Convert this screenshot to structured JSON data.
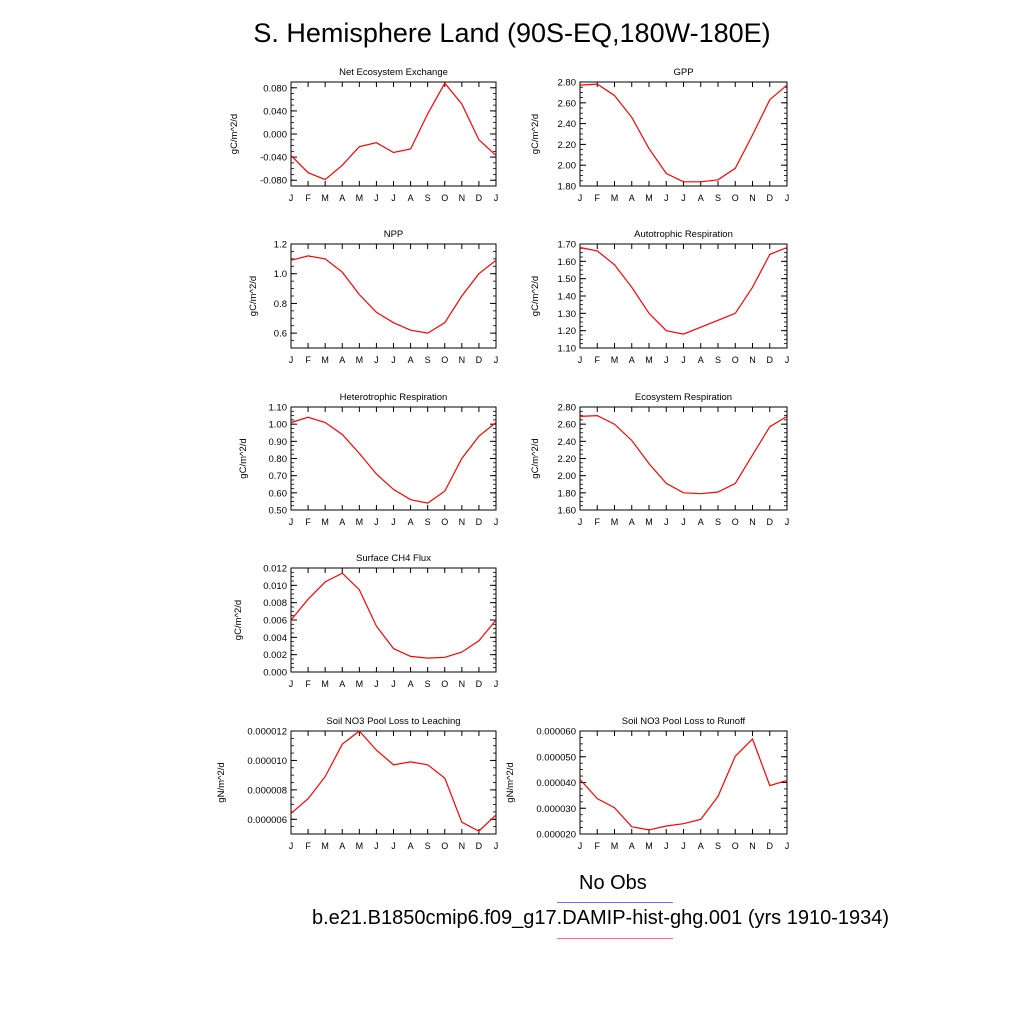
{
  "figure": {
    "title": "S. Hemisphere Land (90S-EQ,180W-180E)"
  },
  "colors": {
    "model": "#ff0000",
    "obs": "#6f6fff"
  },
  "legend": {
    "obs_label": "No Obs",
    "model_label": "b.e21.B1850cmip6.f09_g17.DAMIP-hist-ghg.001 (yrs 1910-1934)"
  },
  "chart_data": [
    {
      "type": "line",
      "title": "Net Ecosystem Exchange",
      "ylabel": "gC/m^2/d",
      "x": [
        "J",
        "F",
        "M",
        "A",
        "M",
        "J",
        "J",
        "A",
        "S",
        "O",
        "N",
        "D",
        "J"
      ],
      "ylim": [
        -0.09,
        0.09
      ],
      "yticks": [
        -0.08,
        -0.04,
        0.0,
        0.04,
        0.08
      ],
      "yticklabels": [
        "-0.080",
        "-0.040",
        "0.000",
        "0.040",
        "0.080"
      ],
      "series": [
        {
          "values": [
            -0.037,
            -0.067,
            -0.079,
            -0.054,
            -0.022,
            -0.015,
            -0.032,
            -0.026,
            0.035,
            0.088,
            0.052,
            -0.01,
            -0.037
          ]
        }
      ]
    },
    {
      "type": "line",
      "title": "GPP",
      "ylabel": "gC/m^2/d",
      "x": [
        "J",
        "F",
        "M",
        "A",
        "M",
        "J",
        "J",
        "A",
        "S",
        "O",
        "N",
        "D",
        "J"
      ],
      "ylim": [
        1.8,
        2.8
      ],
      "yticks": [
        1.8,
        2.0,
        2.2,
        2.4,
        2.6,
        2.8
      ],
      "yticklabels": [
        "1.80",
        "2.00",
        "2.20",
        "2.40",
        "2.60",
        "2.80"
      ],
      "series": [
        {
          "values": [
            2.77,
            2.78,
            2.67,
            2.46,
            2.16,
            1.92,
            1.84,
            1.84,
            1.86,
            1.97,
            2.29,
            2.63,
            2.77
          ]
        }
      ]
    },
    {
      "type": "line",
      "title": "NPP",
      "ylabel": "gC/m^2/d",
      "x": [
        "J",
        "F",
        "M",
        "A",
        "M",
        "J",
        "J",
        "A",
        "S",
        "O",
        "N",
        "D",
        "J"
      ],
      "ylim": [
        0.5,
        1.2
      ],
      "yticks": [
        0.6,
        0.8,
        1.0,
        1.2
      ],
      "yticklabels": [
        "0.6",
        "0.8",
        "1.0",
        "1.2"
      ],
      "series": [
        {
          "values": [
            1.09,
            1.12,
            1.1,
            1.01,
            0.86,
            0.74,
            0.67,
            0.62,
            0.6,
            0.67,
            0.85,
            1.0,
            1.09
          ]
        }
      ]
    },
    {
      "type": "line",
      "title": "Autotrophic Respiration",
      "ylabel": "gC/m^2/d",
      "x": [
        "J",
        "F",
        "M",
        "A",
        "M",
        "J",
        "J",
        "A",
        "S",
        "O",
        "N",
        "D",
        "J"
      ],
      "ylim": [
        1.1,
        1.7
      ],
      "yticks": [
        1.1,
        1.2,
        1.3,
        1.4,
        1.5,
        1.6,
        1.7
      ],
      "yticklabels": [
        "1.10",
        "1.20",
        "1.30",
        "1.40",
        "1.50",
        "1.60",
        "1.70"
      ],
      "series": [
        {
          "values": [
            1.68,
            1.66,
            1.58,
            1.45,
            1.3,
            1.2,
            1.18,
            1.22,
            1.26,
            1.3,
            1.45,
            1.64,
            1.68
          ]
        }
      ]
    },
    {
      "type": "line",
      "title": "Heterotrophic Respiration",
      "ylabel": "gC/m^2/d",
      "x": [
        "J",
        "F",
        "M",
        "A",
        "M",
        "J",
        "J",
        "A",
        "S",
        "O",
        "N",
        "D",
        "J"
      ],
      "ylim": [
        0.5,
        1.1
      ],
      "yticks": [
        0.5,
        0.6,
        0.7,
        0.8,
        0.9,
        1.0,
        1.1
      ],
      "yticklabels": [
        "0.50",
        "0.60",
        "0.70",
        "0.80",
        "0.90",
        "1.00",
        "1.10"
      ],
      "series": [
        {
          "values": [
            1.01,
            1.04,
            1.01,
            0.94,
            0.83,
            0.71,
            0.62,
            0.56,
            0.54,
            0.61,
            0.8,
            0.93,
            1.01
          ]
        }
      ]
    },
    {
      "type": "line",
      "title": "Ecosystem Respiration",
      "ylabel": "gC/m^2/d",
      "x": [
        "J",
        "F",
        "M",
        "A",
        "M",
        "J",
        "J",
        "A",
        "S",
        "O",
        "N",
        "D",
        "J"
      ],
      "ylim": [
        1.6,
        2.8
      ],
      "yticks": [
        1.6,
        1.8,
        2.0,
        2.2,
        2.4,
        2.6,
        2.8
      ],
      "yticklabels": [
        "1.60",
        "1.80",
        "2.00",
        "2.20",
        "2.40",
        "2.60",
        "2.80"
      ],
      "series": [
        {
          "values": [
            2.69,
            2.7,
            2.6,
            2.41,
            2.14,
            1.91,
            1.8,
            1.79,
            1.81,
            1.91,
            2.24,
            2.57,
            2.69
          ]
        }
      ]
    },
    {
      "type": "line",
      "title": "Surface CH4 Flux",
      "ylabel": "gC/m^2/d",
      "x": [
        "J",
        "F",
        "M",
        "A",
        "M",
        "J",
        "J",
        "A",
        "S",
        "O",
        "N",
        "D",
        "J"
      ],
      "ylim": [
        0.0,
        0.012
      ],
      "yticks": [
        0.0,
        0.002,
        0.004,
        0.006,
        0.008,
        0.01,
        0.012
      ],
      "yticklabels": [
        "0.000",
        "0.002",
        "0.004",
        "0.006",
        "0.008",
        "0.010",
        "0.012"
      ],
      "series": [
        {
          "values": [
            0.006,
            0.0084,
            0.0104,
            0.0114,
            0.0095,
            0.0053,
            0.0027,
            0.0018,
            0.0016,
            0.0017,
            0.0023,
            0.0036,
            0.006
          ]
        }
      ]
    },
    {
      "type": "line",
      "title": "Soil NO3 Pool Loss to Leaching",
      "ylabel": "gN/m^2/d",
      "x": [
        "J",
        "F",
        "M",
        "A",
        "M",
        "J",
        "J",
        "A",
        "S",
        "O",
        "N",
        "D",
        "J"
      ],
      "ylim": [
        5e-06,
        1.2e-05
      ],
      "yticks": [
        6e-06,
        8e-06,
        1e-05,
        1.2e-05
      ],
      "yticklabels": [
        "0.000006",
        "0.000008",
        "0.000010",
        "0.000012"
      ],
      "series": [
        {
          "values": [
            6.4e-06,
            7.4e-06,
            8.9e-06,
            1.11e-05,
            1.2e-05,
            1.07e-05,
            9.7e-06,
            9.9e-06,
            9.7e-06,
            8.8e-06,
            5.8e-06,
            5.2e-06,
            6.3e-06
          ]
        }
      ]
    },
    {
      "type": "line",
      "title": "Soil NO3 Pool Loss to Runoff",
      "ylabel": "gN/m^2/d",
      "x": [
        "J",
        "F",
        "M",
        "A",
        "M",
        "J",
        "J",
        "A",
        "S",
        "O",
        "N",
        "D",
        "J"
      ],
      "ylim": [
        2e-05,
        6e-05
      ],
      "yticks": [
        2e-05,
        3e-05,
        4e-05,
        5e-05,
        6e-05
      ],
      "yticklabels": [
        "0.000020",
        "0.000030",
        "0.000040",
        "0.000050",
        "0.000060"
      ],
      "series": [
        {
          "values": [
            4.12e-05,
            3.37e-05,
            3.02e-05,
            2.28e-05,
            2.16e-05,
            2.31e-05,
            2.4e-05,
            2.57e-05,
            3.46e-05,
            5.02e-05,
            5.69e-05,
            3.88e-05,
            4.08e-05
          ]
        }
      ]
    }
  ]
}
